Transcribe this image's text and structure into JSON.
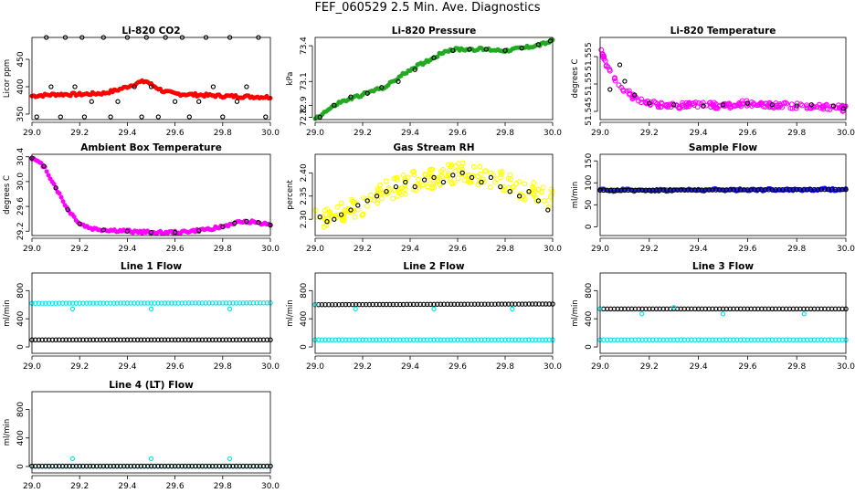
{
  "title": "FEF_060529  2.5 Min. Ave. Diagnostics",
  "chart_data": [
    {
      "type": "scatter",
      "title": "Li-820 CO2",
      "ylabel": "Licor ppm",
      "xlim": [
        29.0,
        30.0
      ],
      "ylim": [
        340,
        490
      ],
      "xticks": [
        "29.0",
        "29.2",
        "29.4",
        "29.6",
        "29.8",
        "30.0"
      ],
      "yticks": [
        "350",
        "400",
        "450"
      ],
      "ytick_values": [
        350,
        400,
        450
      ],
      "series": [
        {
          "name": "avg",
          "color": "#ff0000",
          "style": "band",
          "x": [
            29.0,
            29.1,
            29.2,
            29.3,
            29.35,
            29.4,
            29.45,
            29.48,
            29.5,
            29.55,
            29.6,
            29.7,
            29.8,
            29.9,
            30.0
          ],
          "y": [
            383,
            386,
            386,
            388,
            393,
            400,
            408,
            410,
            404,
            392,
            387,
            385,
            383,
            382,
            381
          ]
        },
        {
          "name": "rings",
          "color": "#000000",
          "style": "rings",
          "x": [
            29.02,
            29.06,
            29.08,
            29.12,
            29.14,
            29.18,
            29.21,
            29.22,
            29.25,
            29.3,
            29.33,
            29.36,
            29.4,
            29.43,
            29.46,
            29.48,
            29.5,
            29.53,
            29.56,
            29.6,
            29.63,
            29.66,
            29.7,
            29.73,
            29.76,
            29.8,
            29.83,
            29.86,
            29.9,
            29.95,
            29.98
          ],
          "y": [
            345,
            490,
            400,
            345,
            490,
            400,
            490,
            345,
            373,
            490,
            345,
            373,
            490,
            400,
            345,
            490,
            400,
            345,
            490,
            373,
            490,
            345,
            373,
            490,
            400,
            345,
            490,
            373,
            400,
            490,
            345
          ]
        }
      ]
    },
    {
      "type": "scatter",
      "title": "Li-820 Pressure",
      "ylabel": "kPa",
      "xlim": [
        29.0,
        30.0
      ],
      "ylim": [
        72.78,
        73.47
      ],
      "xticks": [
        "29.0",
        "29.2",
        "29.4",
        "29.6",
        "29.8",
        "30.0"
      ],
      "yticks": [
        "72.8",
        "72.9",
        "73.1",
        "73.4"
      ],
      "ytick_values": [
        72.8,
        72.9,
        73.1,
        73.4
      ],
      "series": [
        {
          "name": "avg",
          "color": "#22aa22",
          "style": "band",
          "x": [
            29.0,
            29.1,
            29.2,
            29.3,
            29.4,
            29.5,
            29.55,
            29.6,
            29.7,
            29.8,
            29.9,
            29.95,
            30.0
          ],
          "y": [
            72.79,
            72.92,
            72.99,
            73.06,
            73.2,
            73.3,
            73.36,
            73.37,
            73.37,
            73.36,
            73.39,
            73.41,
            73.44
          ]
        },
        {
          "name": "rings",
          "color": "#000000",
          "style": "rings",
          "x": [
            29.02,
            29.08,
            29.15,
            29.22,
            29.28,
            29.35,
            29.42,
            29.5,
            29.58,
            29.65,
            29.72,
            29.8,
            29.87,
            29.94,
            29.99
          ],
          "y": [
            72.8,
            72.9,
            72.97,
            73.0,
            73.05,
            73.1,
            73.2,
            73.3,
            73.36,
            73.37,
            73.37,
            73.36,
            73.38,
            73.41,
            73.44
          ]
        }
      ]
    },
    {
      "type": "scatter",
      "title": "Li-820 Temperature",
      "ylabel": "degrees C",
      "xlim": [
        29.0,
        30.0
      ],
      "ylim": [
        51.5435,
        51.5585
      ],
      "xticks": [
        "29.0",
        "29.2",
        "29.4",
        "29.6",
        "29.8",
        "30.0"
      ],
      "yticks": [
        "51.545",
        "51.55",
        "51.555"
      ],
      "ytick_values": [
        51.545,
        51.55,
        51.555
      ],
      "series": [
        {
          "name": "avg",
          "color": "#ff00ff",
          "style": "cloud",
          "x": [
            29.0,
            29.03,
            29.06,
            29.1,
            29.15,
            29.2,
            29.3,
            29.4,
            29.5,
            29.6,
            29.7,
            29.8,
            29.9,
            30.0
          ],
          "y": [
            51.5565,
            51.553,
            51.551,
            51.549,
            51.547,
            51.5465,
            51.546,
            51.5462,
            51.546,
            51.5465,
            51.5462,
            51.546,
            51.5458,
            51.5455
          ],
          "spread": 0.0011
        },
        {
          "name": "rings",
          "color": "#000000",
          "style": "rings",
          "x": [
            29.04,
            29.08,
            29.1,
            29.14,
            29.2,
            29.3,
            29.42,
            29.5,
            29.6,
            29.7,
            29.8,
            29.86,
            29.95,
            29.99
          ],
          "y": [
            51.549,
            51.5535,
            51.5505,
            51.548,
            51.5465,
            51.5462,
            51.546,
            51.5462,
            51.5465,
            51.5462,
            51.546,
            51.5462,
            51.546,
            51.5455
          ]
        }
      ]
    },
    {
      "type": "scatter",
      "title": "Ambient Box Temperature",
      "ylabel": "degrees C",
      "xlim": [
        29.0,
        30.0
      ],
      "ylim": [
        29.13,
        30.44
      ],
      "xticks": [
        "29.0",
        "29.2",
        "29.4",
        "29.6",
        "29.8",
        "30.0"
      ],
      "yticks": [
        "29.2",
        "29.6",
        "30.0",
        "30.4"
      ],
      "ytick_values": [
        29.2,
        29.6,
        30.0,
        30.4
      ],
      "series": [
        {
          "name": "avg",
          "color": "#ff00ff",
          "style": "band",
          "x": [
            29.0,
            29.05,
            29.1,
            29.15,
            29.2,
            29.25,
            29.3,
            29.4,
            29.5,
            29.6,
            29.7,
            29.8,
            29.85,
            29.9,
            29.95,
            30.0
          ],
          "y": [
            30.38,
            30.25,
            29.9,
            29.55,
            29.32,
            29.24,
            29.22,
            29.2,
            29.18,
            29.18,
            29.21,
            29.27,
            29.33,
            29.36,
            29.34,
            29.3
          ]
        },
        {
          "name": "rings",
          "color": "#000000",
          "style": "rings",
          "x": [
            29.0,
            29.05,
            29.1,
            29.15,
            29.2,
            29.3,
            29.4,
            29.5,
            29.6,
            29.7,
            29.8,
            29.85,
            29.9,
            29.95,
            30.0
          ],
          "y": [
            30.38,
            30.25,
            29.9,
            29.55,
            29.32,
            29.22,
            29.2,
            29.18,
            29.18,
            29.21,
            29.27,
            29.33,
            29.36,
            29.34,
            29.3
          ]
        }
      ]
    },
    {
      "type": "scatter",
      "title": "Gas Stream RH",
      "ylabel": "percent",
      "xlim": [
        29.0,
        30.0
      ],
      "ylim": [
        2.265,
        2.44
      ],
      "xticks": [
        "29.0",
        "29.2",
        "29.4",
        "29.6",
        "29.8",
        "30.0"
      ],
      "yticks": [
        "2.30",
        "2.35",
        "2.40"
      ],
      "ytick_values": [
        2.3,
        2.35,
        2.4
      ],
      "series": [
        {
          "name": "avg",
          "color": "#ffff00",
          "style": "cloud",
          "x": [
            29.0,
            29.1,
            29.2,
            29.3,
            29.4,
            29.5,
            29.6,
            29.7,
            29.8,
            29.9,
            30.0
          ],
          "y": [
            2.3,
            2.315,
            2.33,
            2.36,
            2.38,
            2.39,
            2.4,
            2.395,
            2.38,
            2.36,
            2.345
          ],
          "spread": 0.045
        },
        {
          "name": "rings",
          "color": "#000000",
          "style": "rings",
          "x": [
            29.02,
            29.05,
            29.08,
            29.11,
            29.15,
            29.18,
            29.22,
            29.26,
            29.3,
            29.34,
            29.38,
            29.42,
            29.46,
            29.5,
            29.54,
            29.58,
            29.62,
            29.66,
            29.7,
            29.74,
            29.78,
            29.82,
            29.86,
            29.9,
            29.94,
            29.98
          ],
          "y": [
            2.305,
            2.295,
            2.3,
            2.31,
            2.32,
            2.33,
            2.34,
            2.35,
            2.36,
            2.37,
            2.38,
            2.37,
            2.385,
            2.39,
            2.38,
            2.395,
            2.4,
            2.39,
            2.38,
            2.39,
            2.37,
            2.36,
            2.35,
            2.36,
            2.34,
            2.32
          ]
        }
      ]
    },
    {
      "type": "scatter",
      "title": "Sample Flow",
      "ylabel": "ml/min",
      "xlim": [
        29.0,
        30.0
      ],
      "ylim": [
        -20,
        165
      ],
      "xticks": [
        "29.0",
        "29.2",
        "29.4",
        "29.6",
        "29.8",
        "30.0"
      ],
      "yticks": [
        "0",
        "50",
        "100",
        "150"
      ],
      "ytick_values": [
        0,
        50,
        100,
        150
      ],
      "series": [
        {
          "name": "avg",
          "color": "#1a1aff",
          "style": "band",
          "x": [
            29.0,
            30.0
          ],
          "y": [
            83,
            85
          ]
        },
        {
          "name": "rings",
          "color": "#000000",
          "style": "line-rings",
          "x": [
            29.0,
            30.0
          ],
          "y": [
            83,
            85
          ]
        }
      ]
    },
    {
      "type": "scatter",
      "title": "Line 1 Flow",
      "ylabel": "ml/min",
      "xlim": [
        29.0,
        30.0
      ],
      "ylim": [
        -90,
        1050
      ],
      "xticks": [
        "29.0",
        "29.2",
        "29.4",
        "29.6",
        "29.8",
        "30.0"
      ],
      "yticks": [
        "0",
        "400",
        "800"
      ],
      "ytick_values": [
        0,
        400,
        800
      ],
      "series": [
        {
          "name": "cyan",
          "color": "#00e5e5",
          "style": "line-rings",
          "x": [
            29.0,
            30.0
          ],
          "y": [
            620,
            625
          ]
        },
        {
          "name": "cyan-outliers",
          "color": "#00e5e5",
          "style": "rings",
          "x": [
            29.17,
            29.5,
            29.83
          ],
          "y": [
            540,
            540,
            540
          ]
        },
        {
          "name": "black",
          "color": "#000000",
          "style": "line-rings",
          "x": [
            29.0,
            30.0
          ],
          "y": [
            100,
            100
          ]
        }
      ]
    },
    {
      "type": "scatter",
      "title": "Line 2 Flow",
      "ylabel": "ml/min",
      "xlim": [
        29.0,
        30.0
      ],
      "ylim": [
        -90,
        1050
      ],
      "xticks": [
        "29.0",
        "29.2",
        "29.4",
        "29.6",
        "29.8",
        "30.0"
      ],
      "yticks": [
        "0",
        "400",
        "800"
      ],
      "ytick_values": [
        0,
        400,
        800
      ],
      "series": [
        {
          "name": "black",
          "color": "#000000",
          "style": "line-rings",
          "x": [
            29.0,
            30.0
          ],
          "y": [
            600,
            610
          ]
        },
        {
          "name": "cyan-outliers",
          "color": "#00e5e5",
          "style": "rings",
          "x": [
            29.0,
            29.17,
            29.5,
            29.83
          ],
          "y": [
            600,
            540,
            540,
            540
          ]
        },
        {
          "name": "cyan",
          "color": "#00e5e5",
          "style": "line-rings",
          "x": [
            29.0,
            30.0
          ],
          "y": [
            100,
            100
          ]
        }
      ]
    },
    {
      "type": "scatter",
      "title": "Line 3 Flow",
      "ylabel": "ml/min",
      "xlim": [
        29.0,
        30.0
      ],
      "ylim": [
        -90,
        1050
      ],
      "xticks": [
        "29.0",
        "29.2",
        "29.4",
        "29.6",
        "29.8",
        "30.0"
      ],
      "yticks": [
        "0",
        "400",
        "800"
      ],
      "ytick_values": [
        0,
        400,
        800
      ],
      "series": [
        {
          "name": "black",
          "color": "#000000",
          "style": "line-rings",
          "x": [
            29.0,
            30.0
          ],
          "y": [
            540,
            540
          ]
        },
        {
          "name": "cyan-outliers",
          "color": "#00e5e5",
          "style": "rings",
          "x": [
            29.0,
            29.17,
            29.3,
            29.5,
            29.83
          ],
          "y": [
            540,
            470,
            560,
            470,
            470
          ]
        },
        {
          "name": "cyan",
          "color": "#00e5e5",
          "style": "line-rings",
          "x": [
            29.0,
            30.0
          ],
          "y": [
            100,
            100
          ]
        }
      ]
    },
    {
      "type": "scatter",
      "title": "Line 4 (LT) Flow",
      "ylabel": "ml/min",
      "xlim": [
        29.0,
        30.0
      ],
      "ylim": [
        -90,
        1050
      ],
      "xticks": [
        "29.0",
        "29.2",
        "29.4",
        "29.6",
        "29.8",
        "30.0"
      ],
      "yticks": [
        "0",
        "400",
        "800"
      ],
      "ytick_values": [
        0,
        400,
        800
      ],
      "series": [
        {
          "name": "cyan",
          "color": "#00e5e5",
          "style": "line-rings",
          "x": [
            29.0,
            30.0
          ],
          "y": [
            5,
            5
          ]
        },
        {
          "name": "cyan-outliers",
          "color": "#00e5e5",
          "style": "rings",
          "x": [
            29.17,
            29.5,
            29.83
          ],
          "y": [
            110,
            110,
            110
          ]
        },
        {
          "name": "black",
          "color": "#000000",
          "style": "line-rings",
          "x": [
            29.0,
            30.0
          ],
          "y": [
            5,
            5
          ]
        }
      ]
    }
  ]
}
